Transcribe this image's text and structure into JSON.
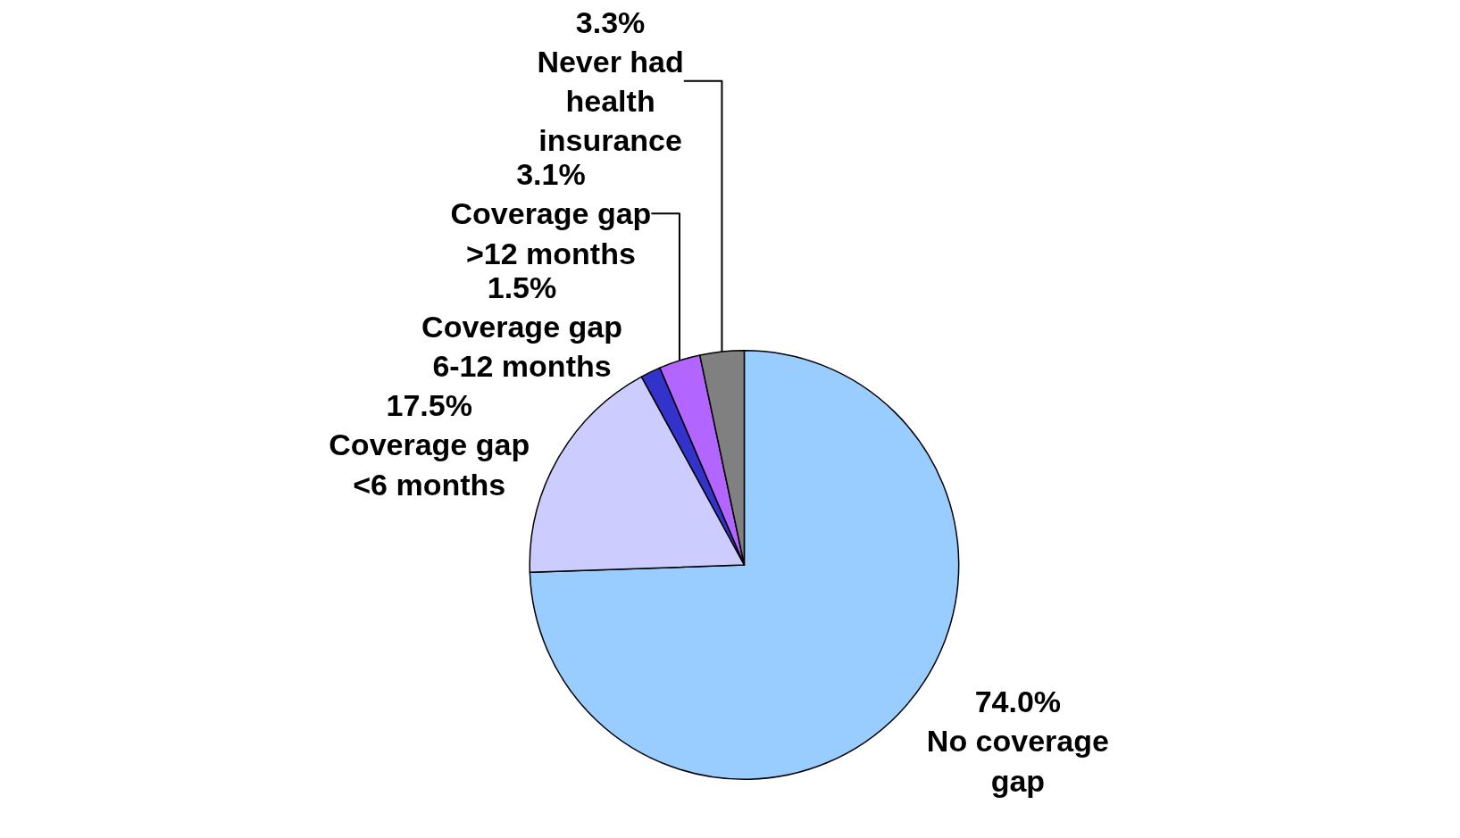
{
  "chart_data": {
    "type": "pie",
    "categories": [
      "No coverage\ngap",
      "Coverage gap\n<6 months",
      "Coverage gap\n6-12 months",
      "Coverage gap\n>12 months",
      "Never had\nhealth\ninsurance"
    ],
    "values": [
      74.0,
      17.5,
      1.5,
      3.1,
      3.3
    ],
    "value_labels": [
      "74.0%",
      "17.5%",
      "1.5%",
      "3.1%",
      "3.3%"
    ],
    "colors": [
      "#99ccff",
      "#ccccff",
      "#3333cc",
      "#b366ff",
      "#808080"
    ],
    "legend": false
  }
}
